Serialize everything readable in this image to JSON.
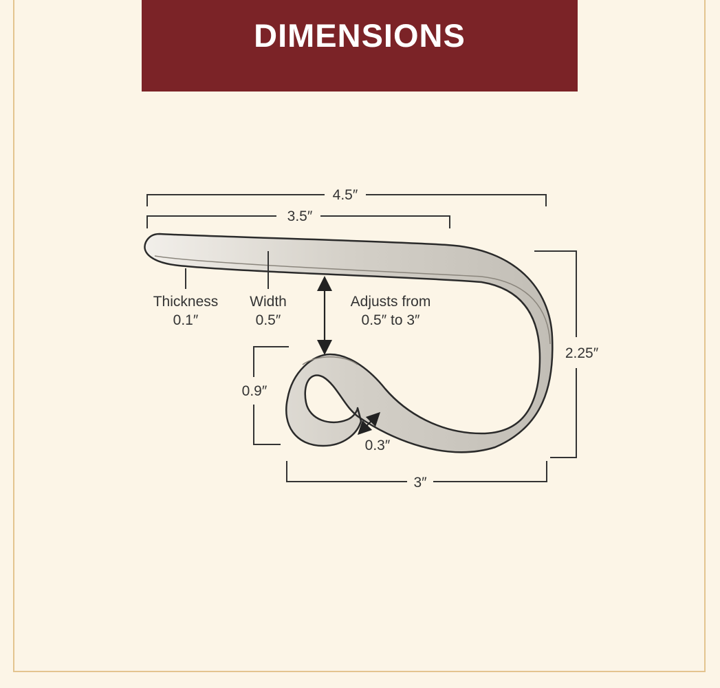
{
  "header": {
    "title": "DIMENSIONS"
  },
  "colors": {
    "banner": "#7b2327",
    "background": "#fcf5e7",
    "frame": "#e3c48f",
    "line": "#333333"
  },
  "dimensions": {
    "overall_length": "4.5″",
    "top_length": "3.5″",
    "thickness_label": "Thickness",
    "thickness_value": "0.1″",
    "width_label": "Width",
    "width_value": "0.5″",
    "adjust_label": "Adjusts from",
    "adjust_value": "0.5″ to 3″",
    "height": "2.25″",
    "curl_height": "0.9″",
    "gap": "0.3″",
    "bottom_length": "3″"
  }
}
